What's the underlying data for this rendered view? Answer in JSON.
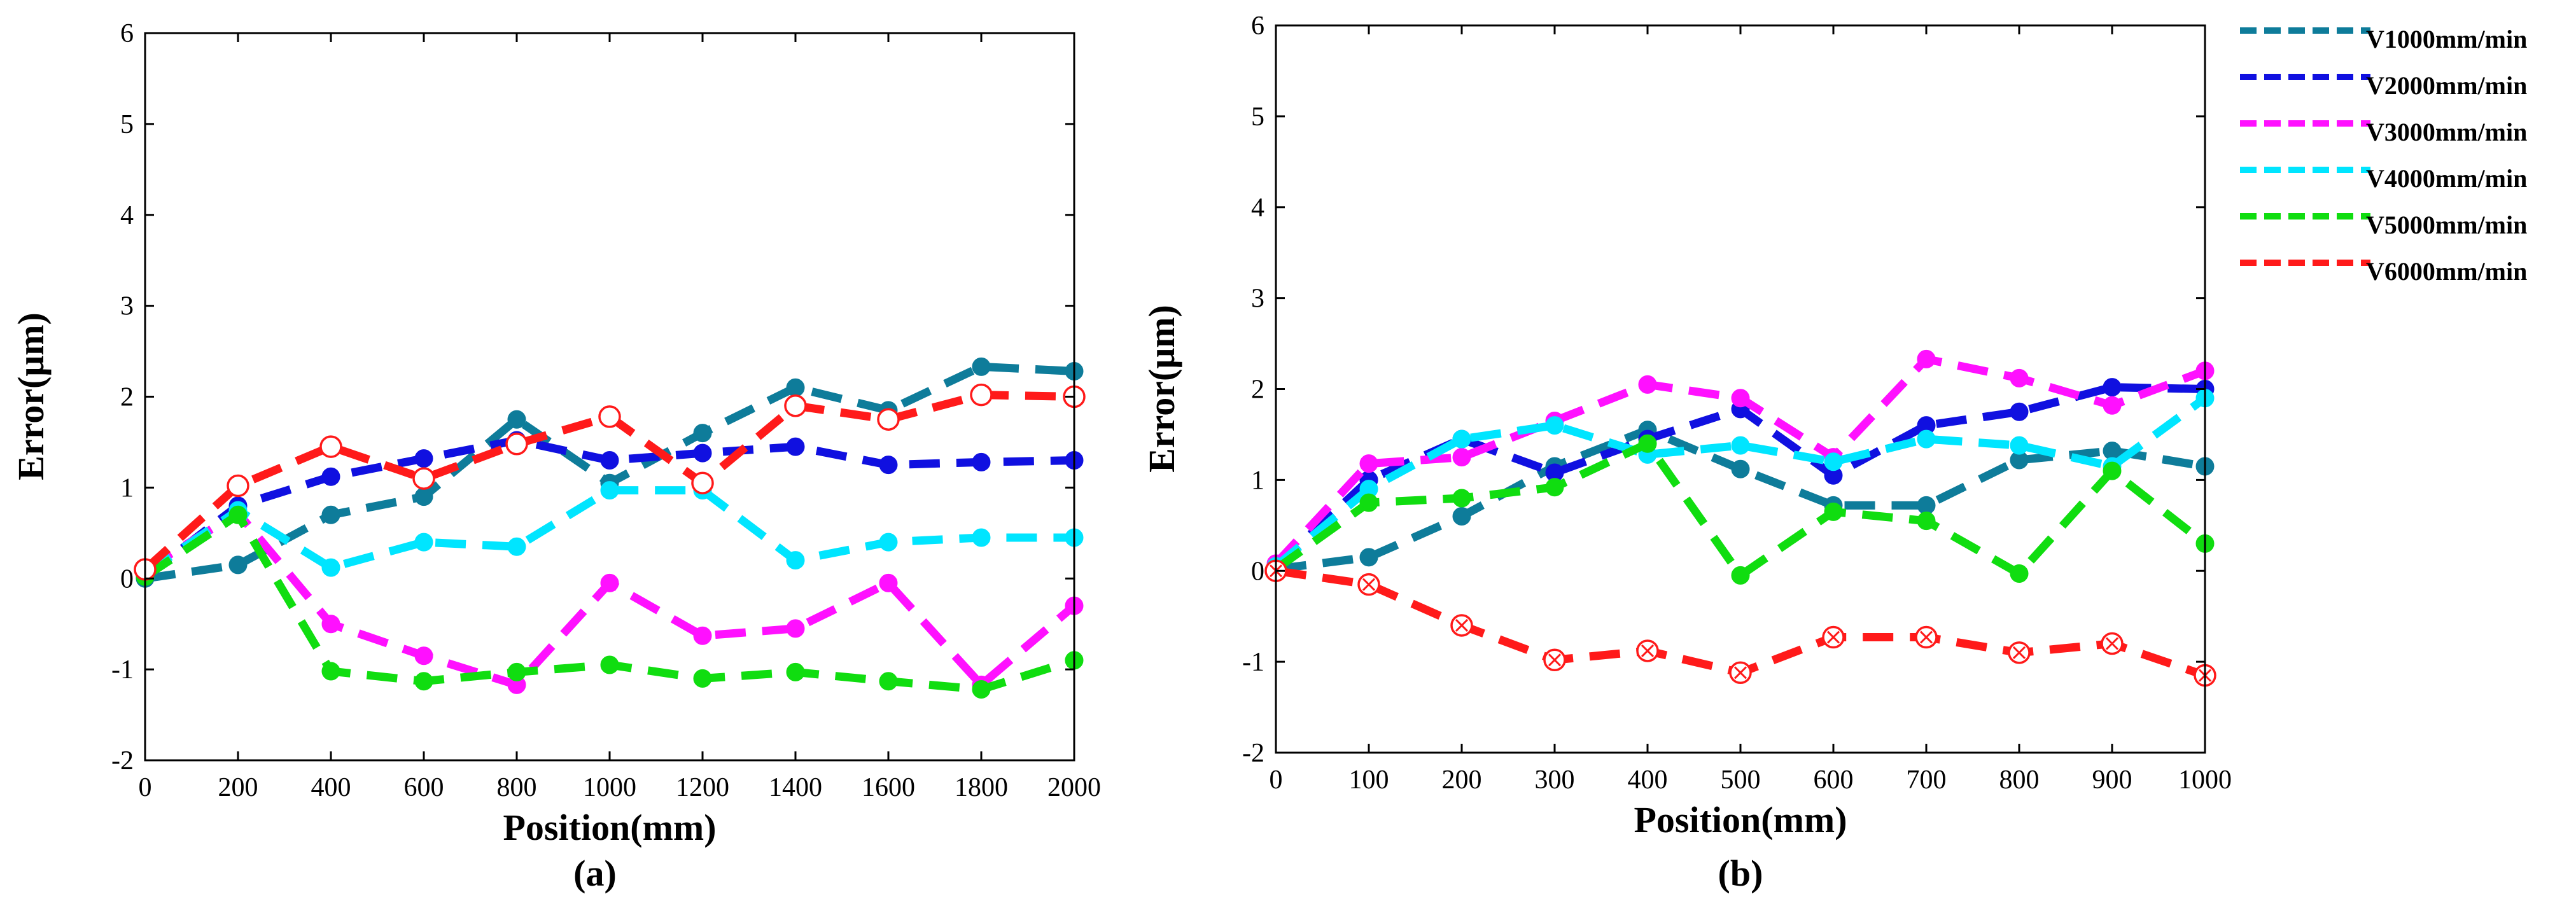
{
  "chart_data": [
    {
      "type": "line",
      "panel": "(a)",
      "xlabel": "Position(mm)",
      "ylabel": "Error(μm)",
      "xlim": [
        0,
        2000
      ],
      "ylim": [
        -2,
        6
      ],
      "xticks": [
        0,
        200,
        400,
        600,
        800,
        1000,
        1200,
        1400,
        1600,
        1800,
        2000
      ],
      "yticks": [
        -2,
        -1,
        0,
        1,
        2,
        3,
        4,
        5,
        6
      ],
      "series": [
        {
          "name": "V1000mm/min",
          "color": "#0e7c9a",
          "marker": "circle-filled",
          "x": [
            0,
            200,
            400,
            600,
            800,
            1000,
            1200,
            1400,
            1600,
            1800,
            2000
          ],
          "y": [
            0.0,
            0.15,
            0.7,
            0.9,
            1.75,
            1.05,
            1.6,
            2.1,
            1.85,
            2.33,
            2.28
          ]
        },
        {
          "name": "V2000mm/min",
          "color": "#1010e0",
          "marker": "circle-filled",
          "x": [
            0,
            200,
            400,
            600,
            800,
            1000,
            1200,
            1400,
            1600,
            1800,
            2000
          ],
          "y": [
            0.02,
            0.8,
            1.12,
            1.32,
            1.52,
            1.3,
            1.38,
            1.45,
            1.25,
            1.28,
            1.3
          ]
        },
        {
          "name": "V3000mm/min",
          "color": "#ff10ff",
          "marker": "circle-filled",
          "x": [
            0,
            200,
            400,
            600,
            800,
            1000,
            1200,
            1400,
            1600,
            1800,
            2000
          ],
          "y": [
            0.1,
            0.72,
            -0.5,
            -0.85,
            -1.17,
            -0.05,
            -0.63,
            -0.55,
            -0.05,
            -1.17,
            -0.3
          ]
        },
        {
          "name": "V4000mm/min",
          "color": "#00e5ff",
          "marker": "circle-filled",
          "x": [
            0,
            200,
            400,
            600,
            800,
            1000,
            1200,
            1400,
            1600,
            1800,
            2000
          ],
          "y": [
            0.05,
            0.75,
            0.12,
            0.4,
            0.35,
            0.97,
            0.97,
            0.2,
            0.4,
            0.45,
            0.45
          ]
        },
        {
          "name": "V5000mm/min",
          "color": "#10dd10",
          "marker": "circle-filled",
          "x": [
            0,
            200,
            400,
            600,
            800,
            1000,
            1200,
            1400,
            1600,
            1800,
            2000
          ],
          "y": [
            0.02,
            0.7,
            -1.02,
            -1.13,
            -1.03,
            -0.95,
            -1.1,
            -1.03,
            -1.13,
            -1.22,
            -0.9
          ]
        },
        {
          "name": "V6000mm/min",
          "color": "#ff1a1a",
          "marker": "circle-open",
          "x": [
            0,
            200,
            400,
            600,
            800,
            1000,
            1200,
            1400,
            1600,
            1800,
            2000
          ],
          "y": [
            0.1,
            1.02,
            1.45,
            1.1,
            1.48,
            1.78,
            1.05,
            1.9,
            1.75,
            2.02,
            2.0
          ]
        }
      ]
    },
    {
      "type": "line",
      "panel": "(b)",
      "xlabel": "Position(mm)",
      "ylabel": "Error(μm)",
      "xlim": [
        0,
        1000
      ],
      "ylim": [
        -2,
        6
      ],
      "xticks": [
        0,
        100,
        200,
        300,
        400,
        500,
        600,
        700,
        800,
        900,
        1000
      ],
      "yticks": [
        -2,
        -1,
        0,
        1,
        2,
        3,
        4,
        5,
        6
      ],
      "series": [
        {
          "name": "V1000mm/min",
          "color": "#0e7c9a",
          "marker": "circle-filled",
          "x": [
            0,
            100,
            200,
            300,
            400,
            500,
            600,
            700,
            800,
            900,
            1000
          ],
          "y": [
            0.02,
            0.15,
            0.6,
            1.15,
            1.55,
            1.12,
            0.72,
            0.72,
            1.22,
            1.32,
            1.15
          ]
        },
        {
          "name": "V2000mm/min",
          "color": "#1010e0",
          "marker": "circle-filled",
          "x": [
            0,
            100,
            200,
            300,
            400,
            500,
            600,
            700,
            800,
            900,
            1000
          ],
          "y": [
            0.05,
            1.0,
            1.45,
            1.08,
            1.45,
            1.78,
            1.05,
            1.6,
            1.75,
            2.02,
            2.0
          ]
        },
        {
          "name": "V3000mm/min",
          "color": "#ff10ff",
          "marker": "circle-filled",
          "x": [
            0,
            100,
            200,
            300,
            400,
            500,
            600,
            700,
            800,
            900,
            1000
          ],
          "y": [
            0.08,
            1.18,
            1.25,
            1.65,
            2.05,
            1.9,
            1.25,
            2.33,
            2.12,
            1.82,
            2.2
          ]
        },
        {
          "name": "V4000mm/min",
          "color": "#00e5ff",
          "marker": "circle-filled",
          "x": [
            0,
            100,
            200,
            300,
            400,
            500,
            600,
            700,
            800,
            900,
            1000
          ],
          "y": [
            0.05,
            0.9,
            1.45,
            1.6,
            1.28,
            1.38,
            1.2,
            1.45,
            1.38,
            1.15,
            1.9
          ]
        },
        {
          "name": "V5000mm/min",
          "color": "#10dd10",
          "marker": "circle-filled",
          "x": [
            0,
            100,
            200,
            300,
            400,
            500,
            600,
            700,
            800,
            900,
            1000
          ],
          "y": [
            0.02,
            0.75,
            0.8,
            0.92,
            1.4,
            -0.05,
            0.65,
            0.55,
            -0.03,
            1.1,
            0.3
          ]
        },
        {
          "name": "V6000mm/min",
          "color": "#ff1a1a",
          "marker": "circle-open-cross",
          "x": [
            0,
            100,
            200,
            300,
            400,
            500,
            600,
            700,
            800,
            900,
            1000
          ],
          "y": [
            0.0,
            -0.15,
            -0.6,
            -0.98,
            -0.88,
            -1.12,
            -0.73,
            -0.73,
            -0.9,
            -0.8,
            -1.15
          ]
        }
      ]
    }
  ],
  "legend": [
    {
      "label": "V1000mm/min",
      "color": "#0e7c9a"
    },
    {
      "label": "V2000mm/min",
      "color": "#1010e0"
    },
    {
      "label": "V3000mm/min",
      "color": "#ff10ff"
    },
    {
      "label": "V4000mm/min",
      "color": "#00e5ff"
    },
    {
      "label": "V5000mm/min",
      "color": "#10dd10"
    },
    {
      "label": "V6000mm/min",
      "color": "#ff1a1a"
    }
  ]
}
